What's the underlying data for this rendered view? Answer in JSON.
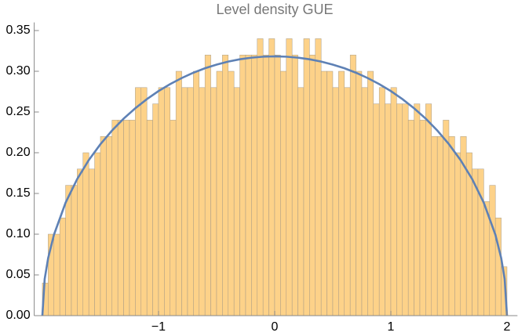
{
  "chart_data": {
    "type": "histogram",
    "title": "Level density GUE",
    "bins": [
      -2,
      -1.95,
      -1.9,
      -1.85,
      -1.8,
      -1.75,
      -1.7,
      -1.65,
      -1.6,
      -1.55,
      -1.5,
      -1.45,
      -1.4,
      -1.35,
      -1.3,
      -1.25,
      -1.2,
      -1.15,
      -1.1,
      -1.05,
      -1,
      -0.95,
      -0.9,
      -0.85,
      -0.8,
      -0.75,
      -0.7,
      -0.65,
      -0.6,
      -0.55,
      -0.5,
      -0.45,
      -0.4,
      -0.35,
      -0.3,
      -0.25,
      -0.2,
      -0.15,
      -0.1,
      -0.05,
      0,
      0.05,
      0.1,
      0.15,
      0.2,
      0.25,
      0.3,
      0.35,
      0.4,
      0.45,
      0.5,
      0.55,
      0.6,
      0.65,
      0.7,
      0.75,
      0.8,
      0.85,
      0.9,
      0.95,
      1,
      1.05,
      1.1,
      1.15,
      1.2,
      1.25,
      1.3,
      1.35,
      1.4,
      1.45,
      1.5,
      1.55,
      1.6,
      1.65,
      1.7,
      1.75,
      1.8,
      1.85,
      1.9,
      1.95,
      2
    ],
    "values": [
      0.04,
      0.1,
      0.1,
      0.12,
      0.16,
      0.16,
      0.18,
      0.2,
      0.18,
      0.2,
      0.22,
      0.22,
      0.24,
      0.24,
      0.24,
      0.24,
      0.28,
      0.28,
      0.24,
      0.26,
      0.28,
      0.28,
      0.24,
      0.3,
      0.28,
      0.28,
      0.3,
      0.28,
      0.32,
      0.28,
      0.3,
      0.32,
      0.3,
      0.28,
      0.32,
      0.32,
      0.32,
      0.34,
      0.32,
      0.34,
      0.32,
      0.3,
      0.34,
      0.32,
      0.28,
      0.34,
      0.32,
      0.34,
      0.3,
      0.3,
      0.28,
      0.3,
      0.28,
      0.32,
      0.3,
      0.28,
      0.3,
      0.26,
      0.28,
      0.26,
      0.28,
      0.26,
      0.26,
      0.24,
      0.26,
      0.24,
      0.26,
      0.22,
      0.22,
      0.24,
      0.22,
      0.2,
      0.22,
      0.2,
      0.18,
      0.18,
      0.14,
      0.16,
      0.12,
      0.06
    ],
    "color": "#fdd083",
    "overlay": {
      "type": "line",
      "color": "#5e81b5",
      "x": [
        -2,
        -1.98,
        -1.95,
        -1.9,
        -1.8,
        -1.7,
        -1.6,
        -1.5,
        -1.4,
        -1.3,
        -1.2,
        -1.1,
        -1,
        -0.9,
        -0.8,
        -0.7,
        -0.6,
        -0.5,
        -0.4,
        -0.3,
        -0.2,
        -0.1,
        0,
        0.1,
        0.2,
        0.3,
        0.4,
        0.5,
        0.6,
        0.7,
        0.8,
        0.9,
        1,
        1.1,
        1.2,
        1.3,
        1.4,
        1.5,
        1.6,
        1.7,
        1.8,
        1.9,
        1.95,
        1.98,
        2
      ],
      "values": [
        0,
        0.0449,
        0.0707,
        0.0994,
        0.1387,
        0.1677,
        0.191,
        0.2105,
        0.2273,
        0.2419,
        0.2546,
        0.2658,
        0.2757,
        0.2843,
        0.2917,
        0.2982,
        0.3037,
        0.3082,
        0.3119,
        0.3147,
        0.3167,
        0.3179,
        0.3183,
        0.3179,
        0.3167,
        0.3147,
        0.3119,
        0.3082,
        0.3037,
        0.2982,
        0.2917,
        0.2843,
        0.2757,
        0.2658,
        0.2546,
        0.2419,
        0.2273,
        0.2105,
        0.191,
        0.1677,
        0.1387,
        0.0994,
        0.0707,
        0.0449,
        0
      ]
    },
    "xlim": [
      -2.07,
      2.09
    ],
    "ylim": [
      0,
      0.36
    ],
    "xticks": [
      {
        "value": -1,
        "label": "−1"
      },
      0,
      1,
      2
    ],
    "yticks": [
      {
        "value": 0,
        "label": "0.00"
      },
      {
        "value": 0.05,
        "label": "0.05"
      },
      {
        "value": 0.1,
        "label": "0.10"
      },
      {
        "value": 0.15,
        "label": "0.15"
      },
      {
        "value": 0.2,
        "label": "0.20"
      },
      {
        "value": 0.25,
        "label": "0.25"
      },
      {
        "value": 0.3,
        "label": "0.30"
      },
      {
        "value": 0.35,
        "label": "0.35"
      }
    ]
  }
}
